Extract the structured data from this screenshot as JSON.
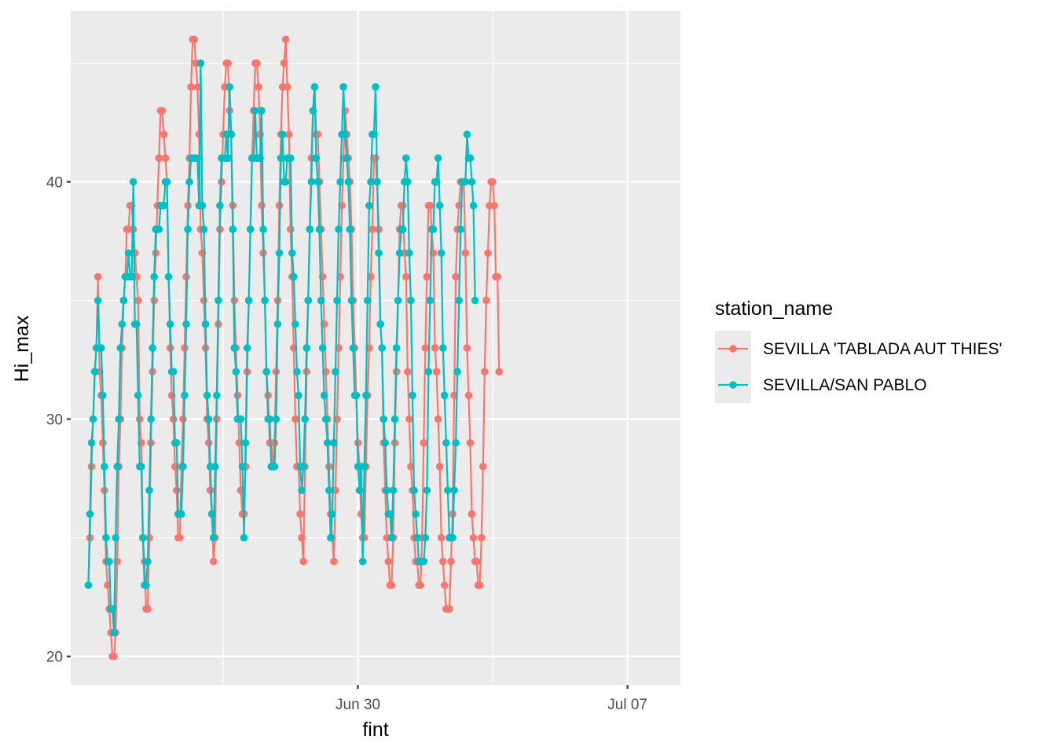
{
  "chart_data": {
    "type": "line",
    "xlabel": "fint",
    "ylabel": "Hi_max",
    "x_axis": {
      "range": [
        "2024-06-22T13:00",
        "2024-07-08T09:00"
      ],
      "ticks": [
        "2024-06-30T00:00",
        "2024-07-07T00:00"
      ],
      "tick_labels": [
        "Jun 30",
        "Jul 07"
      ],
      "minor_ticks": [
        "2024-06-26T12:00",
        "2024-07-03T12:00"
      ]
    },
    "y_axis": {
      "range": [
        18.8,
        47.2
      ],
      "ticks": [
        20,
        30,
        40
      ],
      "minor_ticks": [
        25,
        35,
        45
      ]
    },
    "grid": true,
    "legend": {
      "title": "station_name",
      "position": "right"
    },
    "start_time": "2024-06-23T00:00",
    "step_hours": 1,
    "series": [
      {
        "name": "SEVILLA 'TABLADA AUT THIES'",
        "color": "#F8766D",
        "values": [
          23,
          25,
          28,
          30,
          32,
          33,
          36,
          32,
          31,
          29,
          27,
          24,
          23,
          22,
          21,
          20,
          20,
          21,
          24,
          28,
          30,
          33,
          35,
          36,
          38,
          38,
          39,
          39,
          38,
          37,
          36,
          35,
          30,
          29,
          25,
          24,
          22,
          22,
          25,
          29,
          32,
          35,
          37,
          39,
          41,
          43,
          43,
          42,
          41,
          40,
          36,
          33,
          31,
          30,
          28,
          27,
          25,
          25,
          28,
          30,
          33,
          36,
          39,
          41,
          44,
          46,
          46,
          45,
          44,
          42,
          38,
          37,
          35,
          33,
          30,
          29,
          27,
          26,
          24,
          25,
          30,
          34,
          38,
          40,
          42,
          44,
          45,
          45,
          43,
          42,
          39,
          35,
          33,
          31,
          29,
          27,
          26,
          26,
          28,
          32,
          35,
          38,
          41,
          43,
          45,
          45,
          44,
          42,
          39,
          37,
          35,
          32,
          31,
          29,
          29,
          28,
          29,
          32,
          35,
          39,
          42,
          44,
          45,
          46,
          44,
          42,
          38,
          36,
          33,
          30,
          28,
          28,
          26,
          25,
          24,
          28,
          32,
          35,
          38,
          41,
          43,
          44,
          42,
          42,
          40,
          38,
          36,
          34,
          32,
          30,
          28,
          26,
          25,
          24,
          27,
          30,
          33,
          36,
          39,
          41,
          43,
          42,
          41,
          40,
          38,
          35,
          33,
          31,
          29,
          28,
          26,
          25,
          25,
          28,
          31,
          33,
          36,
          38,
          41,
          41,
          40,
          38,
          34,
          33,
          29,
          27,
          25,
          24,
          23,
          23,
          25,
          29,
          32,
          35,
          38,
          39,
          39,
          37,
          36,
          32,
          30,
          28,
          27,
          25,
          24,
          24,
          23,
          23,
          25,
          29,
          33,
          36,
          39,
          39,
          38,
          37,
          33,
          32,
          30,
          28,
          25,
          24,
          23,
          22,
          22,
          22,
          24,
          26,
          31,
          36,
          38,
          39,
          40,
          40,
          40,
          37,
          33,
          31,
          29,
          26,
          25,
          24,
          24,
          23,
          23,
          25,
          28,
          32,
          35,
          37,
          39,
          40,
          40,
          39,
          36,
          36,
          32
        ]
      },
      {
        "name": "SEVILLA/SAN PABLO",
        "color": "#00BFC4",
        "values": [
          23,
          26,
          29,
          30,
          32,
          33,
          35,
          33,
          33,
          31,
          28,
          25,
          24,
          24,
          22,
          22,
          21,
          25,
          28,
          30,
          33,
          34,
          35,
          36,
          36,
          37,
          36,
          36,
          40,
          34,
          34,
          31,
          28,
          28,
          25,
          23,
          23,
          24,
          27,
          30,
          33,
          36,
          38,
          38,
          38,
          39,
          39,
          39,
          40,
          40,
          36,
          34,
          32,
          32,
          29,
          29,
          26,
          26,
          26,
          28,
          31,
          34,
          38,
          40,
          41,
          41,
          41,
          41,
          41,
          39,
          45,
          39,
          38,
          34,
          31,
          30,
          28,
          26,
          25,
          28,
          31,
          35,
          39,
          41,
          41,
          41,
          42,
          41,
          44,
          42,
          38,
          33,
          32,
          30,
          30,
          30,
          28,
          25,
          29,
          33,
          35,
          38,
          41,
          41,
          43,
          41,
          41,
          41,
          43,
          38,
          35,
          32,
          30,
          30,
          28,
          28,
          28,
          30,
          34,
          37,
          41,
          42,
          40,
          40,
          41,
          41,
          41,
          37,
          36,
          34,
          32,
          31,
          28,
          27,
          28,
          30,
          33,
          35,
          38,
          40,
          43,
          44,
          41,
          40,
          38,
          35,
          33,
          31,
          30,
          29,
          27,
          25,
          26,
          29,
          32,
          35,
          38,
          40,
          42,
          44,
          42,
          41,
          40,
          38,
          35,
          33,
          31,
          31,
          28,
          27,
          28,
          24,
          28,
          31,
          35,
          39,
          40,
          42,
          42,
          44,
          40,
          37,
          34,
          33,
          30,
          29,
          27,
          26,
          26,
          25,
          27,
          30,
          33,
          35,
          37,
          38,
          38,
          40,
          41,
          40,
          37,
          35,
          31,
          27,
          26,
          25,
          24,
          24,
          24,
          24,
          25,
          27,
          32,
          35,
          38,
          38,
          40,
          40,
          41,
          39,
          37,
          33,
          31,
          29,
          27,
          25,
          25,
          25,
          27,
          29,
          32,
          35,
          38,
          40,
          40,
          40,
          42,
          41,
          41,
          40,
          39,
          35
        ]
      }
    ]
  }
}
